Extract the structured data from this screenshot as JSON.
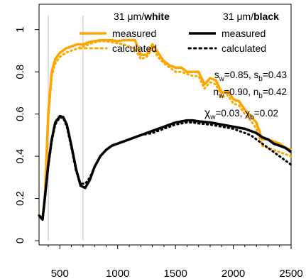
{
  "chart_data": {
    "type": "line",
    "xlim": [
      320,
      2500
    ],
    "ylim": [
      -0.02,
      1.12
    ],
    "x_ticks": [
      500,
      1000,
      1500,
      2000,
      2500
    ],
    "x_tick_labels": [
      "500",
      "1000",
      "1500",
      "2000",
      "2500"
    ],
    "y_ticks": [
      0,
      0.2,
      0.4,
      0.6,
      0.8,
      1
    ],
    "y_tick_labels": [
      "0",
      "0.2",
      "0.4",
      "0.6",
      "0.8",
      "1"
    ],
    "vlines": [
      400,
      700
    ],
    "legend": {
      "white_title_prefix": "31 μm/",
      "white_title_bold": "white",
      "black_title_prefix": "31 μm/",
      "black_title_bold": "black",
      "measured_label": "measured",
      "calculated_label": "calculated"
    },
    "annotations": {
      "s_line": [
        "s",
        "w",
        "=0.85, s",
        "b",
        "=0.43"
      ],
      "n_line": [
        "n",
        "w",
        "=0.90, n",
        "b",
        "=0.42"
      ],
      "chi_line": [
        "χ",
        "w",
        "=0.03, χ",
        "b",
        "=0.02"
      ]
    },
    "colors": {
      "white": "#FFA500",
      "black": "#000000",
      "vline": "#BEBEBE"
    },
    "series": [
      {
        "name": "31 μm/white measured",
        "style": "solid",
        "color": "#FFA500",
        "x": [
          320,
          350,
          370,
          400,
          430,
          460,
          500,
          550,
          600,
          650,
          700,
          750,
          800,
          850,
          900,
          950,
          1000,
          1050,
          1100,
          1150,
          1200,
          1250,
          1300,
          1350,
          1400,
          1450,
          1500,
          1550,
          1600,
          1650,
          1700,
          1750,
          1800,
          1850,
          1900,
          1950,
          2000,
          2050,
          2100,
          2150,
          2200,
          2250,
          2300,
          2350,
          2400,
          2450,
          2500
        ],
        "y": [
          0.12,
          0.1,
          0.2,
          0.6,
          0.8,
          0.86,
          0.89,
          0.91,
          0.92,
          0.93,
          0.93,
          0.94,
          0.945,
          0.95,
          0.95,
          0.95,
          0.945,
          0.95,
          0.95,
          0.95,
          0.88,
          0.88,
          0.93,
          0.89,
          0.85,
          0.83,
          0.82,
          0.82,
          0.8,
          0.8,
          0.8,
          0.74,
          0.77,
          0.76,
          0.7,
          0.71,
          0.67,
          0.66,
          0.62,
          0.59,
          0.56,
          0.48,
          0.48,
          0.47,
          0.46,
          0.44,
          0.43
        ]
      },
      {
        "name": "31 μm/white calculated",
        "style": "dotted",
        "color": "#FFA500",
        "x": [
          320,
          350,
          370,
          400,
          430,
          460,
          500,
          550,
          600,
          650,
          700,
          750,
          800,
          850,
          900,
          950,
          1000,
          1050,
          1100,
          1150,
          1200,
          1250,
          1300,
          1350,
          1400,
          1450,
          1500,
          1550,
          1600,
          1650,
          1700,
          1750,
          1800,
          1850,
          1900,
          1950,
          2000,
          2050,
          2100,
          2150,
          2200,
          2250,
          2300,
          2350,
          2400,
          2450,
          2500
        ],
        "y": [
          0.12,
          0.1,
          0.19,
          0.58,
          0.78,
          0.84,
          0.87,
          0.89,
          0.9,
          0.91,
          0.92,
          0.93,
          0.94,
          0.945,
          0.945,
          0.94,
          0.935,
          0.93,
          0.92,
          0.91,
          0.86,
          0.87,
          0.91,
          0.87,
          0.84,
          0.82,
          0.8,
          0.8,
          0.79,
          0.78,
          0.78,
          0.72,
          0.75,
          0.74,
          0.68,
          0.69,
          0.65,
          0.64,
          0.6,
          0.57,
          0.53,
          0.45,
          0.44,
          0.43,
          0.42,
          0.41,
          0.4
        ]
      },
      {
        "name": "31 μm/black measured",
        "style": "solid",
        "color": "#000000",
        "x": [
          320,
          350,
          370,
          400,
          430,
          460,
          500,
          530,
          560,
          600,
          640,
          680,
          720,
          760,
          800,
          850,
          900,
          950,
          1000,
          1050,
          1100,
          1150,
          1200,
          1300,
          1400,
          1500,
          1600,
          1650,
          1700,
          1800,
          1900,
          2000,
          2050,
          2100,
          2150,
          2200,
          2250,
          2300,
          2350,
          2400,
          2450,
          2500
        ],
        "y": [
          0.12,
          0.1,
          0.2,
          0.36,
          0.48,
          0.56,
          0.59,
          0.585,
          0.55,
          0.45,
          0.34,
          0.26,
          0.25,
          0.29,
          0.35,
          0.4,
          0.43,
          0.45,
          0.46,
          0.47,
          0.48,
          0.49,
          0.5,
          0.52,
          0.54,
          0.56,
          0.57,
          0.57,
          0.565,
          0.56,
          0.55,
          0.54,
          0.535,
          0.53,
          0.52,
          0.51,
          0.49,
          0.48,
          0.46,
          0.45,
          0.44,
          0.42
        ]
      },
      {
        "name": "31 μm/black calculated",
        "style": "dotted",
        "color": "#000000",
        "x": [
          320,
          350,
          370,
          400,
          430,
          460,
          500,
          530,
          560,
          600,
          640,
          680,
          720,
          760,
          800,
          850,
          900,
          950,
          1000,
          1050,
          1100,
          1150,
          1200,
          1300,
          1400,
          1500,
          1600,
          1650,
          1700,
          1800,
          1900,
          2000,
          2050,
          2100,
          2150,
          2200,
          2250,
          2300,
          2350,
          2400,
          2450,
          2500
        ],
        "y": [
          0.12,
          0.1,
          0.2,
          0.35,
          0.47,
          0.55,
          0.585,
          0.58,
          0.54,
          0.44,
          0.33,
          0.27,
          0.27,
          0.3,
          0.35,
          0.4,
          0.43,
          0.45,
          0.46,
          0.47,
          0.48,
          0.49,
          0.5,
          0.51,
          0.53,
          0.55,
          0.56,
          0.56,
          0.555,
          0.55,
          0.54,
          0.53,
          0.52,
          0.51,
          0.5,
          0.48,
          0.46,
          0.44,
          0.42,
          0.4,
          0.38,
          0.36
        ]
      }
    ]
  }
}
